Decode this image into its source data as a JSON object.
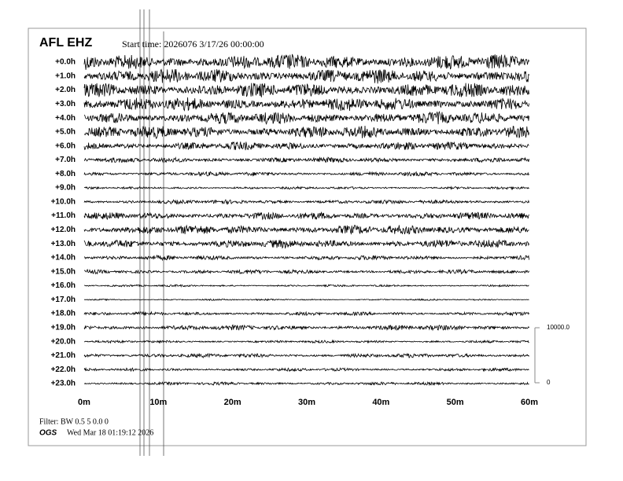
{
  "chart_data": {
    "type": "helicorder",
    "title": "AFL EHZ",
    "subtitle": "Start time: 2026076  3/17/26 00:00:00",
    "categories": [
      "+0.0h",
      "+1.0h",
      "+2.0h",
      "+3.0h",
      "+4.0h",
      "+5.0h",
      "+6.0h",
      "+7.0h",
      "+8.0h",
      "+9.0h",
      "+10.0h",
      "+11.0h",
      "+12.0h",
      "+13.0h",
      "+14.0h",
      "+15.0h",
      "+16.0h",
      "+17.0h",
      "+18.0h",
      "+19.0h",
      "+20.0h",
      "+21.0h",
      "+22.0h",
      "+23.0h"
    ],
    "values": [
      1500,
      1400,
      1400,
      1300,
      1200,
      1200,
      800,
      500,
      400,
      250,
      400,
      700,
      900,
      800,
      450,
      400,
      200,
      150,
      350,
      500,
      250,
      400,
      300,
      300
    ],
    "color": "#000000",
    "xlim": [
      0,
      60
    ],
    "xticks": [
      {
        "value": 0,
        "label": "0m"
      },
      {
        "value": 10,
        "label": "10m"
      },
      {
        "value": 20,
        "label": "20m"
      },
      {
        "value": 30,
        "label": "30m"
      },
      {
        "value": 40,
        "label": "40m"
      },
      {
        "value": 50,
        "label": "50m"
      },
      {
        "value": 60,
        "label": "60m"
      }
    ],
    "ylim": [
      0,
      10000
    ],
    "yticks": [
      {
        "value": 0,
        "label": "0"
      },
      {
        "value": 10000,
        "label": "10000.0"
      }
    ]
  },
  "footer": {
    "filter": "Filter: BW 0.5 5 0.0 0",
    "org": "OGS",
    "date": "Wed Mar 18 01:19:12 2026"
  }
}
